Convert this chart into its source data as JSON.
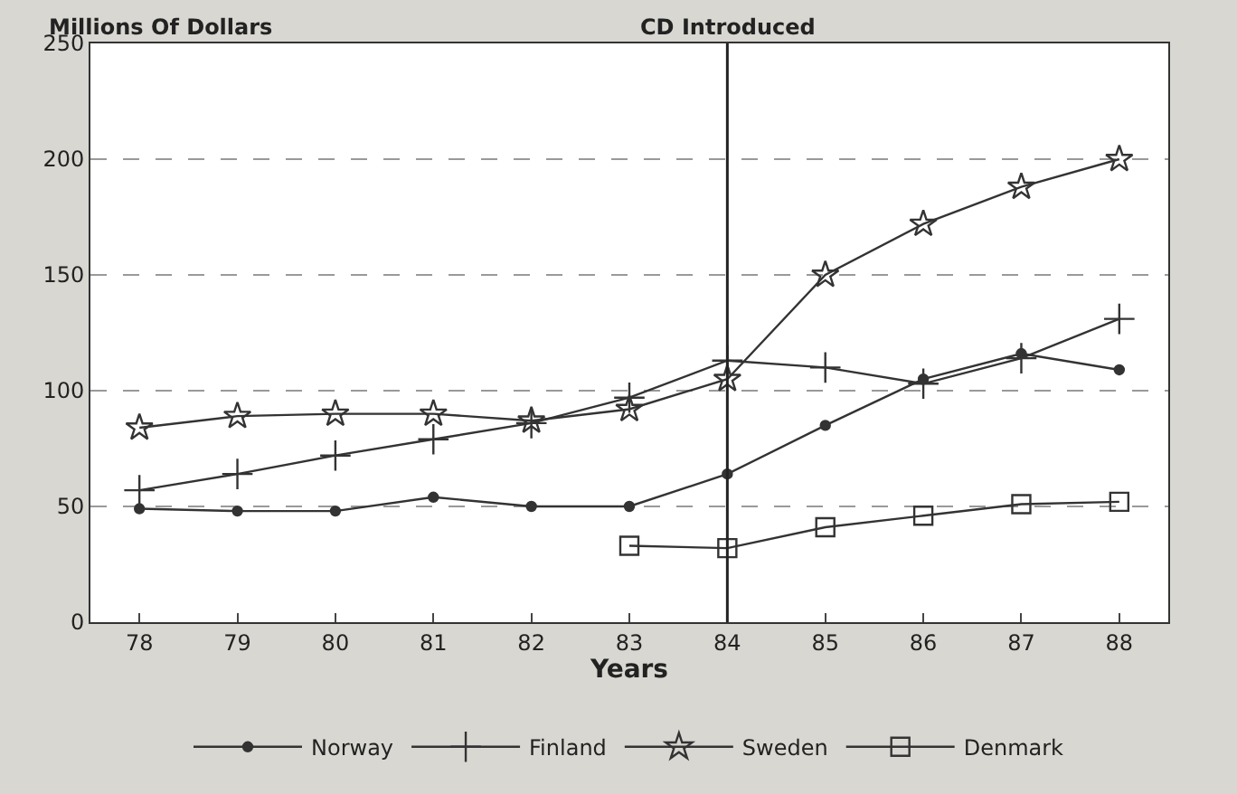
{
  "chart_data": {
    "type": "line",
    "ylabel": "Millions Of Dollars",
    "xlabel": "Years",
    "x": [
      78,
      79,
      80,
      81,
      82,
      83,
      84,
      85,
      86,
      87,
      88
    ],
    "xlim": [
      77.5,
      88.5
    ],
    "xticks": [
      78,
      79,
      80,
      81,
      82,
      83,
      84,
      85,
      86,
      87,
      88
    ],
    "ylim": [
      0,
      250
    ],
    "yticks": [
      0,
      50,
      100,
      150,
      200,
      250
    ],
    "grid": "y",
    "legend": "bottom",
    "ref_lines": [
      {
        "axis": "x",
        "value": 84,
        "label": "CD Introduced",
        "color": "#222222"
      }
    ],
    "series": [
      {
        "name": "Norway",
        "color": "#333333",
        "marker": "circle",
        "values": [
          49,
          48,
          48,
          54,
          50,
          50,
          64,
          85,
          105,
          116,
          109
        ]
      },
      {
        "name": "Finland",
        "color": "#333333",
        "marker": "cross",
        "values": [
          57,
          64,
          72,
          79,
          86,
          97,
          113,
          110,
          103,
          114,
          131
        ]
      },
      {
        "name": "Sweden",
        "color": "#333333",
        "marker": "star",
        "values": [
          84,
          89,
          90,
          90,
          87,
          92,
          105,
          150,
          172,
          188,
          200
        ]
      },
      {
        "name": "Denmark",
        "color": "#333333",
        "marker": "square",
        "values": [
          null,
          null,
          null,
          null,
          null,
          33,
          32,
          41,
          46,
          51,
          52
        ]
      }
    ]
  }
}
